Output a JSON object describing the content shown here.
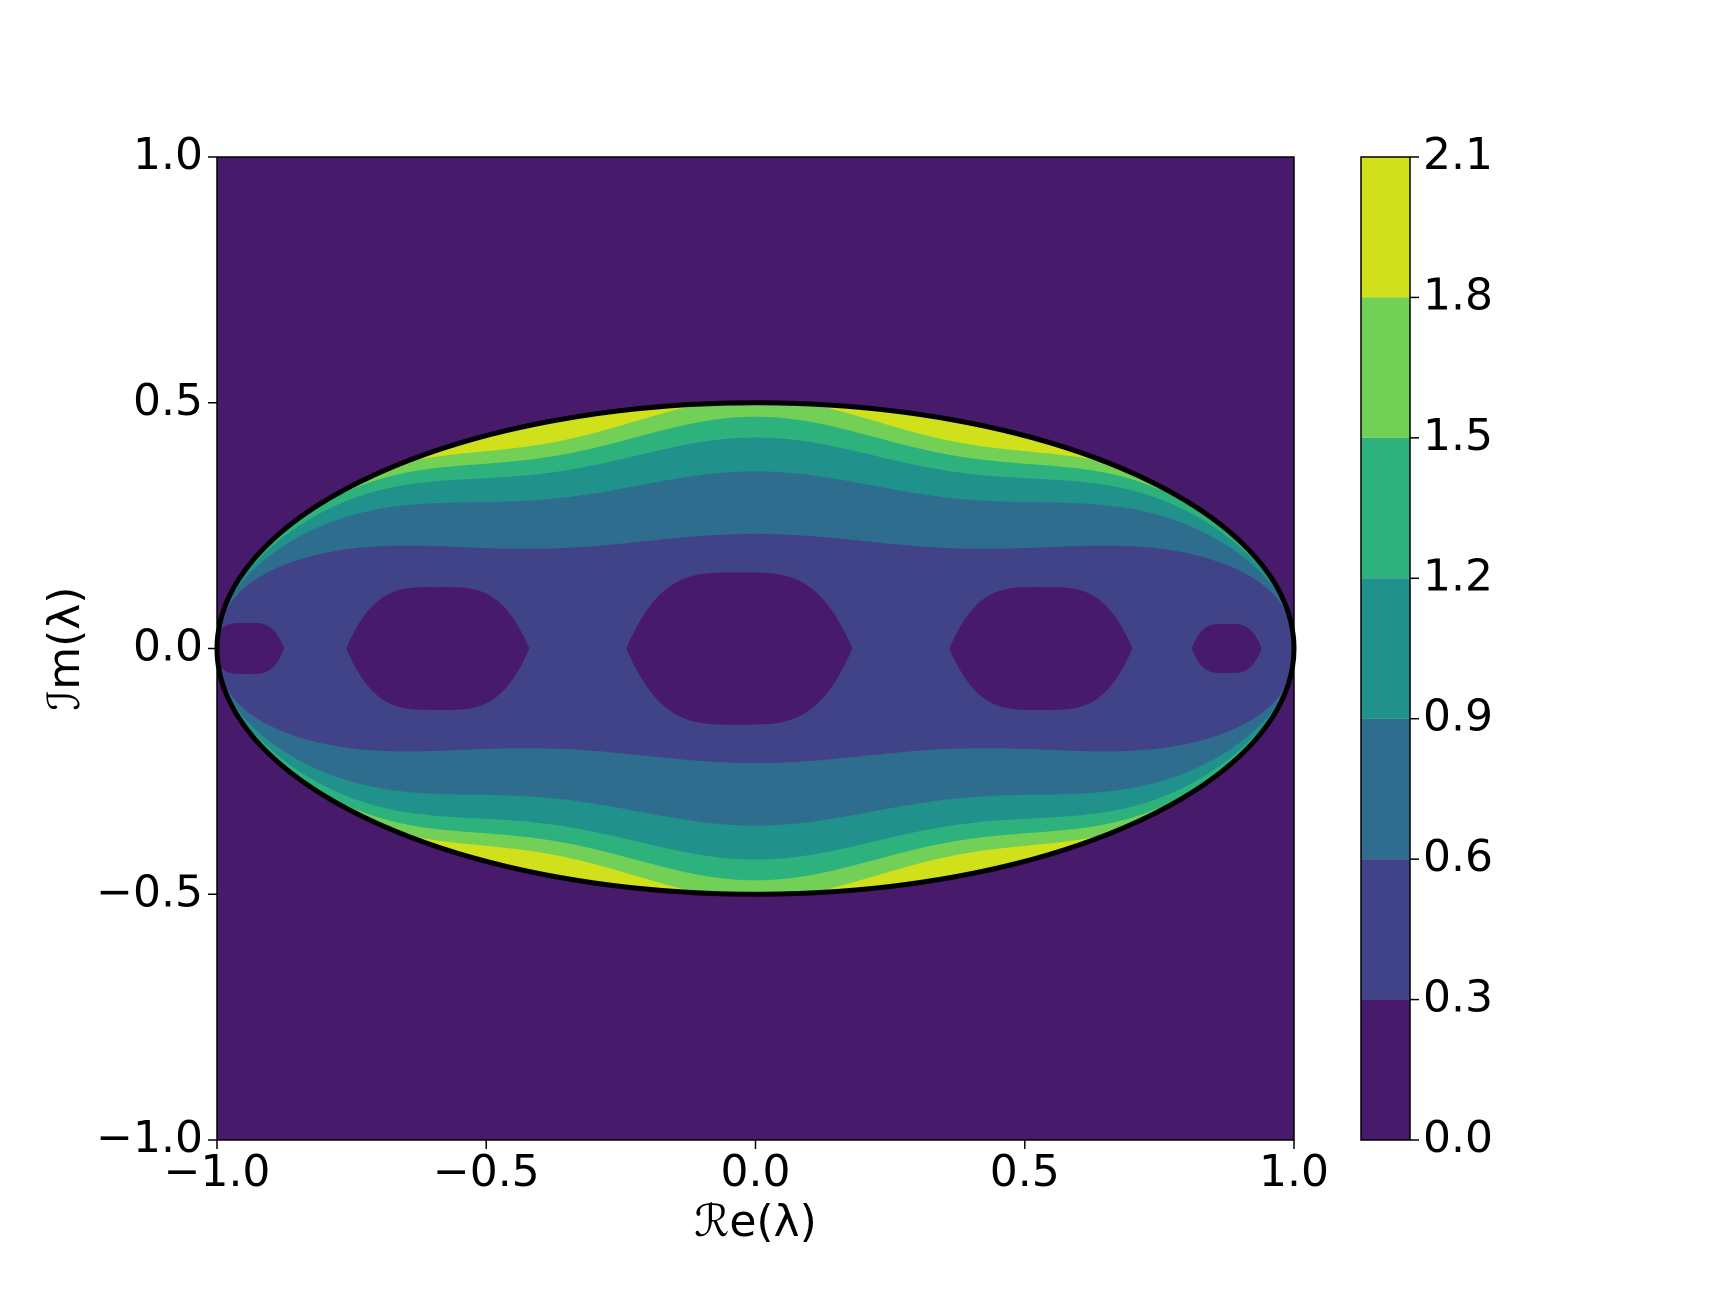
{
  "chart_data": {
    "type": "contour",
    "xlabel": "ℛe(λ)",
    "ylabel": "ℐm(λ)",
    "xlim": [
      -1,
      1
    ],
    "ylim": [
      -1,
      1
    ],
    "xticks": [
      {
        "value": -1,
        "label": "−1.0"
      },
      {
        "value": -0.5,
        "label": "−0.5"
      },
      {
        "value": 0,
        "label": "0.0"
      },
      0.5,
      {
        "value": 1,
        "label": "1.0"
      }
    ],
    "yticks": [
      {
        "value": -1,
        "label": "−1.0"
      },
      {
        "value": -0.5,
        "label": "−0.5"
      },
      {
        "value": 0,
        "label": "0.0"
      },
      0.5,
      {
        "value": 1,
        "label": "1.0"
      }
    ],
    "levels": [
      {
        "value": 0,
        "label": "0.0"
      },
      0.3,
      0.6,
      0.9,
      1.2,
      1.5,
      1.8,
      2.1
    ],
    "colors": [
      "#481a6c",
      "#404387",
      "#2e6d8e",
      "#21918c",
      "#2db27d",
      "#73d056",
      "#d0e11c"
    ]
  }
}
